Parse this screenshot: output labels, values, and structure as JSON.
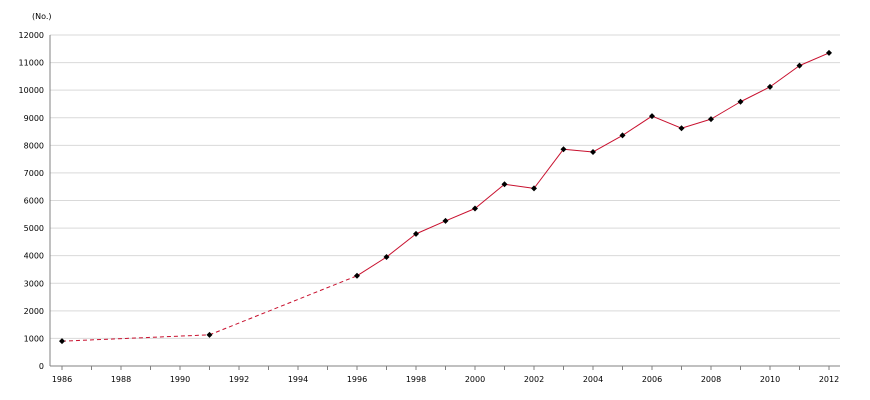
{
  "chart_data": {
    "type": "line",
    "title": "",
    "xlabel": "",
    "ylabel": "(No.)",
    "xlim": [
      1986,
      2012
    ],
    "ylim": [
      0,
      12000
    ],
    "x_ticks": [
      "1986",
      "1988",
      "1990",
      "1992",
      "1994",
      "1996",
      "1998",
      "2000",
      "2002",
      "2004",
      "2006",
      "2008",
      "2010",
      "2012"
    ],
    "y_ticks": [
      "0",
      "1000",
      "2000",
      "3000",
      "4000",
      "5000",
      "6000",
      "7000",
      "8000",
      "9000",
      "10000",
      "11000",
      "12000"
    ],
    "grid": true,
    "line_color": "#c8102e",
    "marker_color": "#000000",
    "series": [
      {
        "x": [
          1986,
          1991,
          1996,
          1997,
          1998,
          1999,
          2000,
          2001,
          2002,
          2003,
          2004,
          2005,
          2006,
          2007,
          2008,
          2009,
          2010,
          2011,
          2012
        ],
        "values": [
          900,
          1130,
          3270,
          3950,
          4790,
          5260,
          5710,
          6590,
          6440,
          7860,
          7760,
          8360,
          9060,
          8620,
          8950,
          9580,
          10120,
          10890,
          11350
        ]
      }
    ],
    "dashed_segments": [
      [
        1986,
        1991
      ],
      [
        1991,
        1996
      ]
    ]
  }
}
